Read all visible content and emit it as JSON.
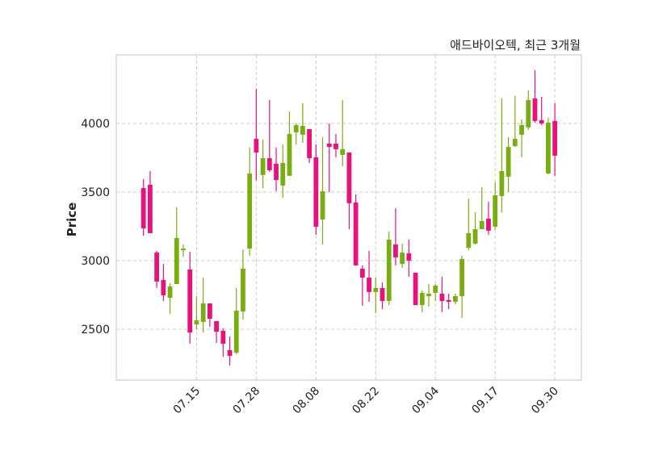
{
  "chart_data": {
    "type": "candlestick",
    "title": "애드바이오텍, 최근 3개월",
    "xlabel": "",
    "ylabel": "Price",
    "ylim": [
      2129,
      4500
    ],
    "xlim": [
      -4.1,
      66
    ],
    "grid": true,
    "colors": {
      "up": "#7aad12",
      "down": "#e8127c",
      "grid": "#cccccc",
      "frame": "#d8d8d8"
    },
    "yticks": [
      2500,
      3000,
      3500,
      4000
    ],
    "xticks": [
      {
        "index": 8,
        "label": "07.15"
      },
      {
        "index": 17,
        "label": "07.28"
      },
      {
        "index": 26,
        "label": "08.08"
      },
      {
        "index": 35,
        "label": "08.22"
      },
      {
        "index": 44,
        "label": "09.04"
      },
      {
        "index": 53,
        "label": "09.17"
      },
      {
        "index": 62,
        "label": "09.30"
      }
    ],
    "ohlc": [
      [
        3529,
        3594,
        3182,
        3235
      ],
      [
        3553,
        3653,
        3200,
        3200
      ],
      [
        3059,
        3071,
        2800,
        2847
      ],
      [
        2859,
        2976,
        2706,
        2747
      ],
      [
        2729,
        2835,
        2612,
        2812
      ],
      [
        2829,
        3388,
        2829,
        3165
      ],
      [
        3076,
        3118,
        3029,
        3088
      ],
      [
        2935,
        3065,
        2394,
        2476
      ],
      [
        2535,
        2741,
        2500,
        2565
      ],
      [
        2553,
        2876,
        2476,
        2688
      ],
      [
        2688,
        2688,
        2518,
        2576
      ],
      [
        2559,
        2559,
        2400,
        2482
      ],
      [
        2488,
        2506,
        2300,
        2394
      ],
      [
        2347,
        2447,
        2235,
        2306
      ],
      [
        2329,
        2800,
        2318,
        2635
      ],
      [
        2629,
        3082,
        2571,
        2941
      ],
      [
        3088,
        3824,
        3035,
        3635
      ],
      [
        3888,
        4253,
        3588,
        3788
      ],
      [
        3624,
        3882,
        3529,
        3747
      ],
      [
        3747,
        4171,
        3647,
        3659
      ],
      [
        3706,
        3824,
        3506,
        3588
      ],
      [
        3547,
        3847,
        3459,
        3712
      ],
      [
        3618,
        4088,
        3618,
        3924
      ],
      [
        3935,
        4000,
        3847,
        3988
      ],
      [
        3918,
        4147,
        3859,
        3982
      ],
      [
        3959,
        3959,
        3712,
        3747
      ],
      [
        3753,
        3847,
        3188,
        3247
      ],
      [
        3300,
        3900,
        3118,
        3506
      ],
      [
        3853,
        4000,
        3500,
        3829
      ],
      [
        3853,
        3924,
        3753,
        3812
      ],
      [
        3771,
        4171,
        3688,
        3812
      ],
      [
        3788,
        3788,
        3229,
        3418
      ],
      [
        3424,
        3482,
        2965,
        2965
      ],
      [
        2941,
        2965,
        2671,
        2876
      ],
      [
        2876,
        3071,
        2700,
        2771
      ],
      [
        2771,
        2876,
        2618,
        2800
      ],
      [
        2800,
        2841,
        2647,
        2706
      ],
      [
        2706,
        3212,
        2676,
        3153
      ],
      [
        3118,
        3382,
        2965,
        3024
      ],
      [
        2976,
        3124,
        2947,
        3059
      ],
      [
        3053,
        3153,
        2882,
        3000
      ],
      [
        2912,
        2912,
        2676,
        2676
      ],
      [
        2676,
        2782,
        2624,
        2765
      ],
      [
        2741,
        2829,
        2665,
        2759
      ],
      [
        2765,
        2829,
        2706,
        2818
      ],
      [
        2759,
        2882,
        2624,
        2706
      ],
      [
        2712,
        2759,
        2647,
        2700
      ],
      [
        2700,
        2759,
        2682,
        2741
      ],
      [
        2741,
        3035,
        2582,
        3012
      ],
      [
        3094,
        3453,
        3076,
        3200
      ],
      [
        3124,
        3353,
        3118,
        3229
      ],
      [
        3229,
        3535,
        3229,
        3288
      ],
      [
        3306,
        3429,
        3188,
        3218
      ],
      [
        3247,
        3571,
        3224,
        3476
      ],
      [
        3471,
        4182,
        3353,
        3653
      ],
      [
        3612,
        3900,
        3500,
        3829
      ],
      [
        3835,
        4200,
        3829,
        3888
      ],
      [
        3918,
        4029,
        3753,
        3988
      ],
      [
        3971,
        4241,
        3953,
        4171
      ],
      [
        4182,
        4388,
        4006,
        4018
      ],
      [
        4024,
        4194,
        3988,
        4000
      ],
      [
        3635,
        4041,
        3629,
        4006
      ],
      [
        4018,
        4147,
        3618,
        3765
      ]
    ]
  }
}
